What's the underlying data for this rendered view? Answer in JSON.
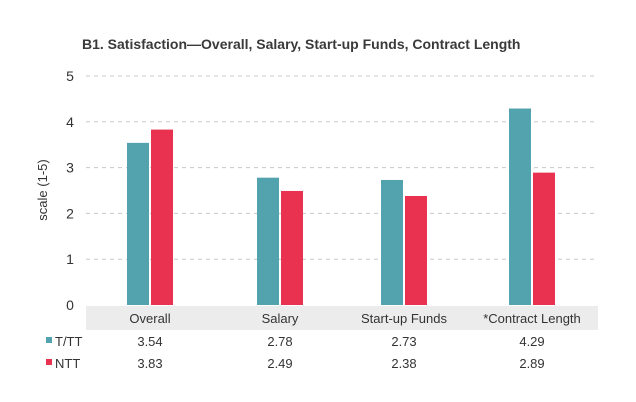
{
  "chart_data": {
    "type": "bar",
    "title": "B1. Satisfaction—Overall, Salary, Start-up Funds, Contract Length",
    "xlabel": "",
    "ylabel": "scale (1-5)",
    "ylim": [
      0,
      5
    ],
    "yticks": [
      0,
      1,
      2,
      3,
      4,
      5
    ],
    "grid": true,
    "categories": [
      "Overall",
      "Salary",
      "Start-up Funds",
      "*Contract Length"
    ],
    "series": [
      {
        "name": "T/TT",
        "color": "#52a3ad",
        "values": [
          3.54,
          2.78,
          2.73,
          4.29
        ],
        "labels": [
          "3.54",
          "2.78",
          "2.73",
          "4.29"
        ]
      },
      {
        "name": "NTT",
        "color": "#e8324f",
        "values": [
          3.83,
          2.49,
          2.38,
          2.89
        ],
        "labels": [
          "3.83",
          "2.49",
          "2.38",
          "2.89"
        ]
      }
    ]
  }
}
